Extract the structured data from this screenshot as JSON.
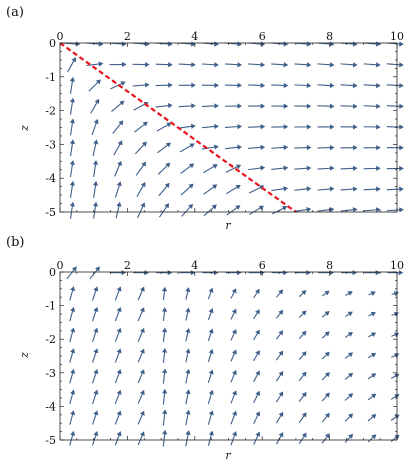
{
  "chart_data": [
    {
      "type": "vector-field",
      "panel_label": "(a)",
      "xlabel": "r",
      "ylabel": "z",
      "xlim": [
        0,
        10
      ],
      "ylim": [
        -5,
        0
      ],
      "x_ticks": [
        "0",
        "2",
        "4",
        "6",
        "8",
        "10"
      ],
      "y_ticks": [
        "0",
        "-1",
        "-2",
        "-3",
        "-4",
        "-5"
      ],
      "arrow_color": "#3d5f8a",
      "dashed_line": {
        "color": "#e8141b",
        "x": [
          0,
          7
        ],
        "y": [
          0,
          -5
        ]
      },
      "field": "a"
    },
    {
      "type": "vector-field",
      "panel_label": "(b)",
      "xlabel": "r",
      "ylabel": "z",
      "xlim": [
        0,
        10
      ],
      "ylim": [
        -5,
        0
      ],
      "x_ticks": [
        "0",
        "2",
        "4",
        "6",
        "8",
        "10"
      ],
      "y_ticks": [
        "0",
        "-1",
        "-2",
        "-3",
        "-4",
        "-5"
      ],
      "arrow_color": "#3d5f8a",
      "field": "b"
    }
  ]
}
